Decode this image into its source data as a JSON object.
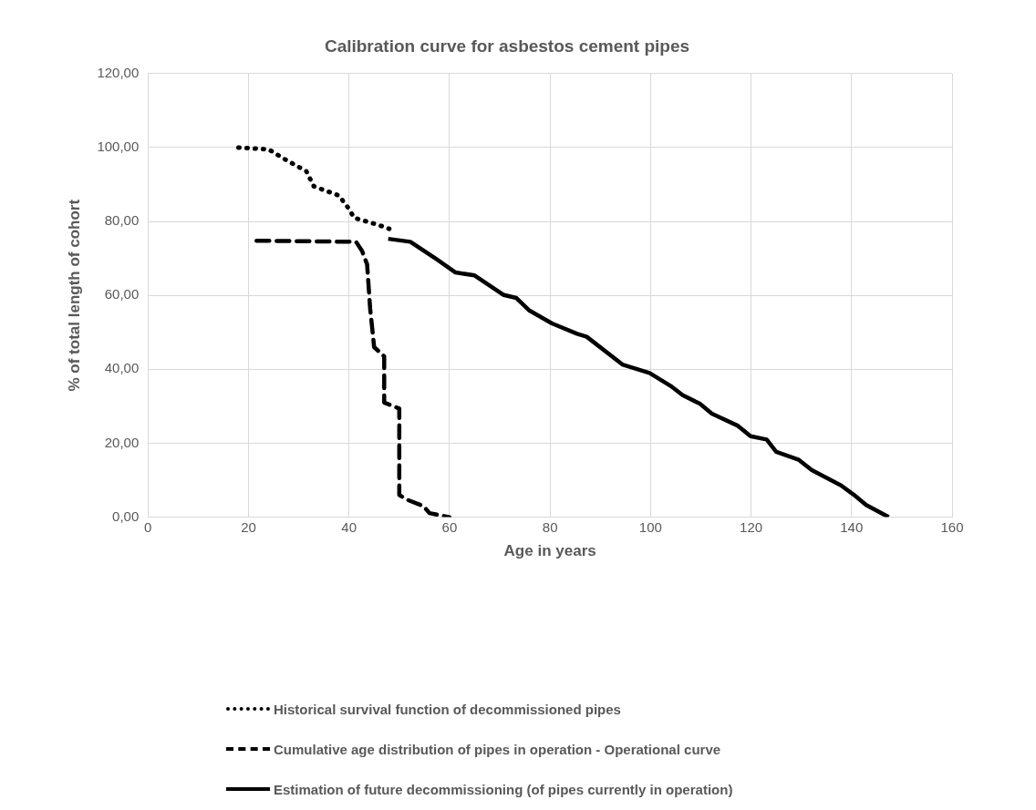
{
  "chart_data": {
    "type": "line",
    "title": "Calibration curve for asbestos cement pipes",
    "xlabel": "Age in years",
    "ylabel": "% of total length of cohort",
    "xlim": [
      0,
      160
    ],
    "xticks": [
      0,
      20,
      40,
      60,
      80,
      100,
      120,
      140,
      160
    ],
    "ylim": [
      0,
      120
    ],
    "yticks": [
      {
        "value": 0,
        "label": "0,00"
      },
      {
        "value": 20,
        "label": "20,00"
      },
      {
        "value": 40,
        "label": "40,00"
      },
      {
        "value": 60,
        "label": "60,00"
      },
      {
        "value": 80,
        "label": "80,00"
      },
      {
        "value": 100,
        "label": "100,00"
      },
      {
        "value": 120,
        "label": "120,00"
      }
    ],
    "grid": true,
    "legend": "bottom",
    "marker": "none",
    "series": [
      {
        "name": "Historical survival function of decommissioned pipes",
        "color": "#000000",
        "line_style": "dotted",
        "x": [
          18,
          24,
          27,
          31.5,
          33,
          38,
          40,
          41,
          46,
          48
        ],
        "values": [
          100,
          99.5,
          97,
          93.6,
          89.5,
          87,
          83.4,
          81,
          79,
          78
        ]
      },
      {
        "name": "Cumulative age distribution of pipes in operation - Operational curve",
        "color": "#000000",
        "line_style": "dashed",
        "x": [
          21.6,
          41.4,
          42.6,
          43.6,
          44.2,
          45,
          47,
          47,
          50,
          50,
          51.6,
          54.8,
          56,
          60
        ],
        "values": [
          74.8,
          74.5,
          72,
          68.4,
          56.5,
          46,
          43.5,
          31,
          29.4,
          6,
          4.7,
          3,
          1.1,
          0
        ]
      },
      {
        "name": "Estimation of future decommissioning (of pipes currently in operation)",
        "color": "#000000",
        "line_style": "solid",
        "x": [
          47.8,
          52.2,
          57.4,
          61.2,
          65,
          70.8,
          73.3,
          75.8,
          80.4,
          85.4,
          87.3,
          94.4,
          99.8,
          104,
          106.4,
          109.8,
          112.2,
          117.4,
          119.9,
          123.1,
          125,
          129.5,
          132.1,
          137.9,
          140.4,
          142.9,
          147.4
        ],
        "values": [
          75.3,
          74.5,
          69.8,
          66.2,
          65.4,
          60.1,
          59.3,
          56,
          52.4,
          49.6,
          48.8,
          41.3,
          39,
          35.5,
          33,
          30.7,
          28,
          24.7,
          21.9,
          21,
          17.7,
          15.5,
          12.7,
          8.6,
          6.1,
          3.3,
          0
        ]
      }
    ]
  }
}
